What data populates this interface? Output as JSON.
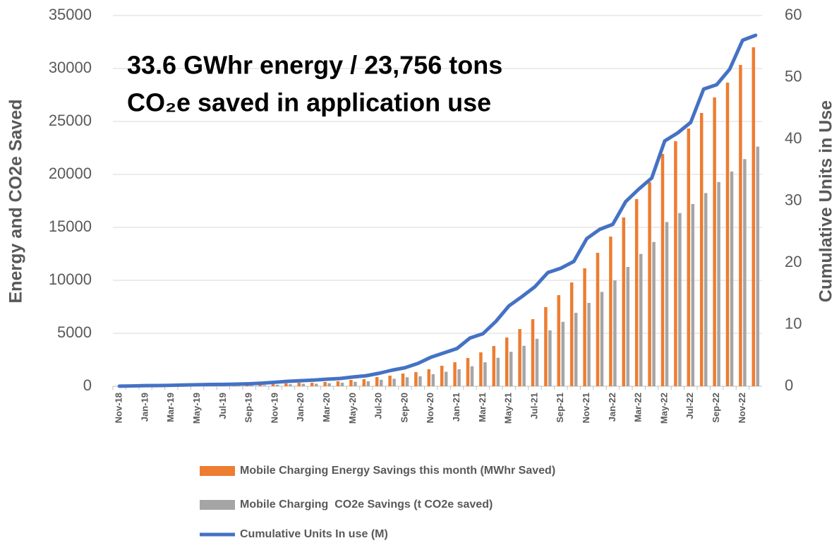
{
  "chart_data": {
    "type": "bar",
    "annotation": [
      "33.6 GWhr energy / 23,756 tons",
      "CO₂e saved in application use"
    ],
    "ylabel": "Energy and CO2e Saved",
    "y2label": "Cumulative Units in Use",
    "categories": [
      "Nov-18",
      null,
      "Jan-19",
      null,
      "Mar-19",
      null,
      "May-19",
      null,
      "Jul-19",
      null,
      "Sep-19",
      null,
      "Nov-19",
      null,
      "Jan-20",
      null,
      "Mar-20",
      null,
      "May-20",
      null,
      "Jul-20",
      null,
      "Sep-20",
      null,
      "Nov-20",
      null,
      "Jan-21",
      null,
      "Mar-21",
      null,
      "May-21",
      null,
      "Jul-21",
      null,
      "Sep-21",
      null,
      "Nov-21",
      null,
      "Jan-22",
      null,
      "Mar-22",
      null,
      "May-22",
      null,
      "Jul-22",
      null,
      "Sep-22",
      null,
      "Nov-22",
      null
    ],
    "series": [
      {
        "name": "Mobile Charging Energy Savings this month (MWhr Saved)",
        "color": "#ed7d31",
        "type": "bar",
        "values": [
          5,
          10,
          15,
          20,
          30,
          40,
          50,
          60,
          70,
          85,
          100,
          130,
          200,
          270,
          330,
          330,
          400,
          470,
          600,
          670,
          870,
          1000,
          1200,
          1333,
          1600,
          1933,
          2267,
          2667,
          3200,
          3800,
          4600,
          5400,
          6333,
          7467,
          8600,
          9800,
          11133,
          12600,
          14133,
          15933,
          17667,
          19267,
          21933,
          23133,
          24333,
          25800,
          27267,
          28667,
          30333,
          32000
        ]
      },
      {
        "name": "Mobile Charging  CO2e Savings (t CO2e saved)",
        "color": "#a5a5a5",
        "type": "bar",
        "values": [
          4,
          7,
          11,
          14,
          21,
          28,
          35,
          42,
          49,
          60,
          71,
          92,
          141,
          191,
          233,
          233,
          283,
          332,
          424,
          474,
          615,
          707,
          848,
          942,
          1131,
          1367,
          1603,
          1886,
          2262,
          2687,
          3252,
          3818,
          4477,
          5279,
          6080,
          6929,
          7871,
          8908,
          9992,
          11265,
          12491,
          13622,
          15507,
          16355,
          17203,
          18241,
          19278,
          20268,
          21445,
          22624
        ]
      },
      {
        "name": "Cumulative Units In use (M)",
        "color": "#4472c4",
        "type": "line",
        "axis": "y2",
        "values": [
          0.02,
          0.05,
          0.1,
          0.12,
          0.15,
          0.2,
          0.25,
          0.28,
          0.3,
          0.35,
          0.4,
          0.5,
          0.65,
          0.8,
          0.9,
          1.0,
          1.14,
          1.26,
          1.5,
          1.7,
          2.1,
          2.6,
          3.0,
          3.7,
          4.7,
          5.4,
          6.1,
          7.8,
          8.5,
          10.5,
          13,
          14.5,
          16.1,
          18.4,
          19.1,
          20.2,
          23.9,
          25.4,
          26.2,
          29.9,
          31.9,
          33.7,
          39.7,
          41,
          42.7,
          48.1,
          48.8,
          51.3,
          56,
          56.8
        ]
      }
    ],
    "ylim": [
      0,
      35000
    ],
    "yticks": [
      0,
      5000,
      10000,
      15000,
      20000,
      25000,
      30000,
      35000
    ],
    "y2lim": [
      0,
      60
    ],
    "y2ticks": [
      0,
      10,
      20,
      30,
      40,
      50,
      60
    ],
    "grid": true
  }
}
